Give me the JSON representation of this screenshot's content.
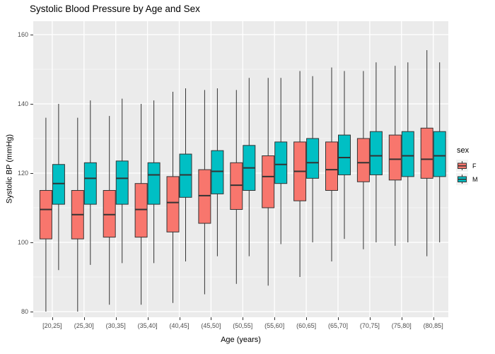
{
  "title": "Systolic Blood Pressure by Age and Sex",
  "chart_data": {
    "type": "boxplot",
    "title": "Systolic Blood Pressure by Age and Sex",
    "xlabel": "Age (years)",
    "ylabel": "Systolic BP (mmHg)",
    "legend_title": "sex",
    "legend_position": "right",
    "grid": true,
    "y_ticks": [
      80,
      100,
      120,
      140,
      160
    ],
    "y_minor_ticks": [
      90,
      110,
      130,
      150
    ],
    "y_range": [
      78.4,
      163.9
    ],
    "categories": [
      "[20,25]",
      "(25,30]",
      "(30,35]",
      "(35,40]",
      "(40,45]",
      "(45,50]",
      "(50,55]",
      "(55,60]",
      "(60,65]",
      "(65,70]",
      "(70,75]",
      "(75,80]",
      "(80,85]"
    ],
    "box_format": [
      "whisker_low",
      "q1",
      "median",
      "q3",
      "whisker_high"
    ],
    "series": [
      {
        "name": "F",
        "color": "#F8766D",
        "boxes": [
          [
            80,
            101,
            109.5,
            115,
            136
          ],
          [
            80,
            101,
            108,
            115,
            136
          ],
          [
            82,
            101.5,
            108,
            115,
            136.5
          ],
          [
            82,
            101.5,
            109.5,
            117,
            140
          ],
          [
            82.5,
            103,
            111.5,
            119,
            143.5
          ],
          [
            85,
            105.5,
            113.5,
            121,
            144
          ],
          [
            88,
            109.5,
            116.5,
            123,
            144
          ],
          [
            87.5,
            110,
            119,
            125,
            147.5
          ],
          [
            90,
            112,
            120.5,
            129,
            149.5
          ],
          [
            94.5,
            115,
            121,
            129,
            150.5
          ],
          [
            98,
            117.5,
            123,
            130,
            149.5
          ],
          [
            99,
            118,
            124,
            131,
            151
          ],
          [
            96,
            118.5,
            124,
            133,
            155.5
          ]
        ]
      },
      {
        "name": "M",
        "color": "#00BFC4",
        "boxes": [
          [
            92,
            111,
            117,
            122.5,
            140
          ],
          [
            93.5,
            111,
            118.5,
            123,
            141
          ],
          [
            94,
            111,
            118.5,
            123.5,
            141.5
          ],
          [
            94,
            111,
            119.5,
            123,
            141
          ],
          [
            94.5,
            113,
            119.5,
            125.5,
            144.5
          ],
          [
            96,
            114,
            120.5,
            126.5,
            144.5
          ],
          [
            96,
            115,
            121.5,
            128,
            147.5
          ],
          [
            99.5,
            117,
            122.5,
            129,
            147.5
          ],
          [
            100,
            118.5,
            123,
            130,
            148
          ],
          [
            101,
            119.5,
            124.5,
            131,
            149.5
          ],
          [
            100,
            119.5,
            125,
            132,
            152
          ],
          [
            100,
            119,
            125,
            132,
            152
          ],
          [
            100,
            119,
            125,
            132,
            152
          ]
        ]
      }
    ]
  },
  "style": {
    "panel_bg": "#EBEBEB",
    "grid_major": "#FFFFFF",
    "box_border": "#333333",
    "axis_text": "#4D4D4D",
    "legend_key_bg": "#F2F2F2"
  }
}
